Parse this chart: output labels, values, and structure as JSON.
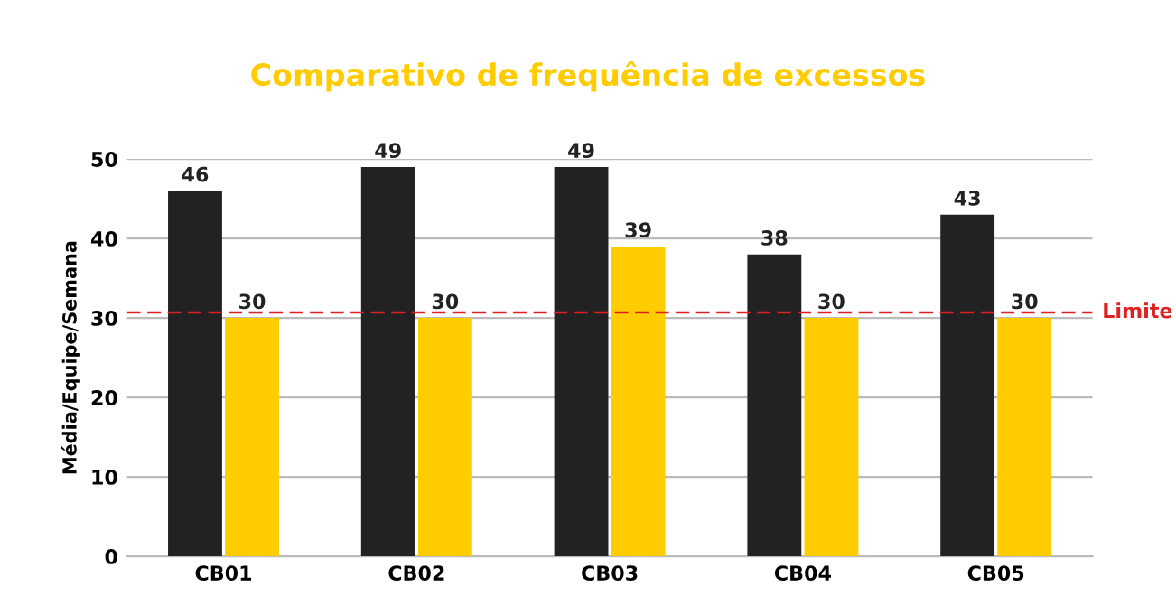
{
  "chart_data": {
    "type": "bar",
    "title": "Comparativo de frequência de excessos",
    "ylabel": "Média/Equipe/Semana",
    "categories": [
      "CB01",
      "CB02",
      "CB03",
      "CB04",
      "CB05"
    ],
    "series": [
      {
        "color": "#222222",
        "values": [
          46,
          49,
          49,
          38,
          43
        ]
      },
      {
        "color": "#ffcc00",
        "values": [
          30,
          30,
          39,
          30,
          30
        ]
      }
    ],
    "ylim": [
      0,
      50
    ],
    "yticks": [
      0,
      10,
      20,
      30,
      40,
      50
    ],
    "grid": "y",
    "data_labels": true,
    "ref_lines": [
      {
        "axis": "y",
        "value": 30.7,
        "label": "Limite",
        "color": "#e02020",
        "line_style": "dashed"
      }
    ]
  }
}
